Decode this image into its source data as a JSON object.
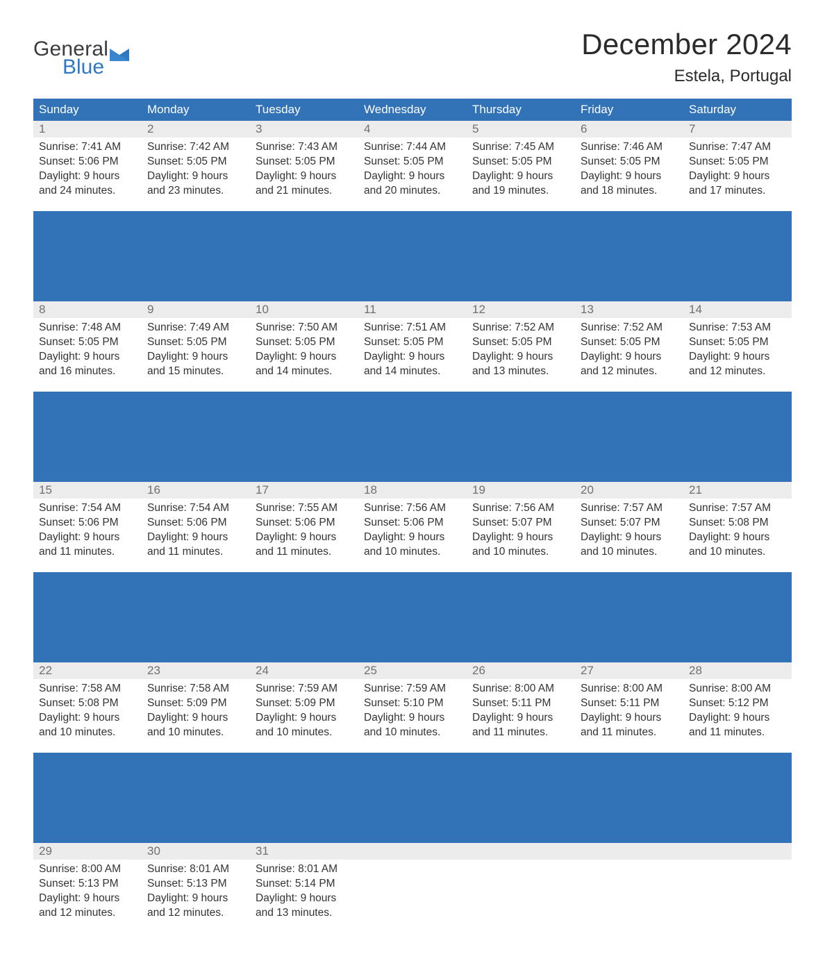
{
  "logo": {
    "line1": "General",
    "line2": "Blue",
    "flag_color": "#2f78c2"
  },
  "title": "December 2024",
  "subtitle": "Estela, Portugal",
  "colors": {
    "header_bg": "#3273b8",
    "header_text": "#ffffff",
    "daynum_bg": "#ececec",
    "daynum_text": "#6f6f6f",
    "body_text": "#333333",
    "page_bg": "#ffffff",
    "logo_gray": "#3b3b3b",
    "logo_blue": "#2f78c2"
  },
  "fonts": {
    "title_size": 42,
    "subtitle_size": 24,
    "weekday_size": 17,
    "daynum_size": 17,
    "body_size": 15.5,
    "logo_size": 30
  },
  "weekdays": [
    "Sunday",
    "Monday",
    "Tuesday",
    "Wednesday",
    "Thursday",
    "Friday",
    "Saturday"
  ],
  "weeks": [
    [
      {
        "num": "1",
        "sunrise": "Sunrise: 7:41 AM",
        "sunset": "Sunset: 5:06 PM",
        "daylight1": "Daylight: 9 hours",
        "daylight2": "and 24 minutes."
      },
      {
        "num": "2",
        "sunrise": "Sunrise: 7:42 AM",
        "sunset": "Sunset: 5:05 PM",
        "daylight1": "Daylight: 9 hours",
        "daylight2": "and 23 minutes."
      },
      {
        "num": "3",
        "sunrise": "Sunrise: 7:43 AM",
        "sunset": "Sunset: 5:05 PM",
        "daylight1": "Daylight: 9 hours",
        "daylight2": "and 21 minutes."
      },
      {
        "num": "4",
        "sunrise": "Sunrise: 7:44 AM",
        "sunset": "Sunset: 5:05 PM",
        "daylight1": "Daylight: 9 hours",
        "daylight2": "and 20 minutes."
      },
      {
        "num": "5",
        "sunrise": "Sunrise: 7:45 AM",
        "sunset": "Sunset: 5:05 PM",
        "daylight1": "Daylight: 9 hours",
        "daylight2": "and 19 minutes."
      },
      {
        "num": "6",
        "sunrise": "Sunrise: 7:46 AM",
        "sunset": "Sunset: 5:05 PM",
        "daylight1": "Daylight: 9 hours",
        "daylight2": "and 18 minutes."
      },
      {
        "num": "7",
        "sunrise": "Sunrise: 7:47 AM",
        "sunset": "Sunset: 5:05 PM",
        "daylight1": "Daylight: 9 hours",
        "daylight2": "and 17 minutes."
      }
    ],
    [
      {
        "num": "8",
        "sunrise": "Sunrise: 7:48 AM",
        "sunset": "Sunset: 5:05 PM",
        "daylight1": "Daylight: 9 hours",
        "daylight2": "and 16 minutes."
      },
      {
        "num": "9",
        "sunrise": "Sunrise: 7:49 AM",
        "sunset": "Sunset: 5:05 PM",
        "daylight1": "Daylight: 9 hours",
        "daylight2": "and 15 minutes."
      },
      {
        "num": "10",
        "sunrise": "Sunrise: 7:50 AM",
        "sunset": "Sunset: 5:05 PM",
        "daylight1": "Daylight: 9 hours",
        "daylight2": "and 14 minutes."
      },
      {
        "num": "11",
        "sunrise": "Sunrise: 7:51 AM",
        "sunset": "Sunset: 5:05 PM",
        "daylight1": "Daylight: 9 hours",
        "daylight2": "and 14 minutes."
      },
      {
        "num": "12",
        "sunrise": "Sunrise: 7:52 AM",
        "sunset": "Sunset: 5:05 PM",
        "daylight1": "Daylight: 9 hours",
        "daylight2": "and 13 minutes."
      },
      {
        "num": "13",
        "sunrise": "Sunrise: 7:52 AM",
        "sunset": "Sunset: 5:05 PM",
        "daylight1": "Daylight: 9 hours",
        "daylight2": "and 12 minutes."
      },
      {
        "num": "14",
        "sunrise": "Sunrise: 7:53 AM",
        "sunset": "Sunset: 5:05 PM",
        "daylight1": "Daylight: 9 hours",
        "daylight2": "and 12 minutes."
      }
    ],
    [
      {
        "num": "15",
        "sunrise": "Sunrise: 7:54 AM",
        "sunset": "Sunset: 5:06 PM",
        "daylight1": "Daylight: 9 hours",
        "daylight2": "and 11 minutes."
      },
      {
        "num": "16",
        "sunrise": "Sunrise: 7:54 AM",
        "sunset": "Sunset: 5:06 PM",
        "daylight1": "Daylight: 9 hours",
        "daylight2": "and 11 minutes."
      },
      {
        "num": "17",
        "sunrise": "Sunrise: 7:55 AM",
        "sunset": "Sunset: 5:06 PM",
        "daylight1": "Daylight: 9 hours",
        "daylight2": "and 11 minutes."
      },
      {
        "num": "18",
        "sunrise": "Sunrise: 7:56 AM",
        "sunset": "Sunset: 5:06 PM",
        "daylight1": "Daylight: 9 hours",
        "daylight2": "and 10 minutes."
      },
      {
        "num": "19",
        "sunrise": "Sunrise: 7:56 AM",
        "sunset": "Sunset: 5:07 PM",
        "daylight1": "Daylight: 9 hours",
        "daylight2": "and 10 minutes."
      },
      {
        "num": "20",
        "sunrise": "Sunrise: 7:57 AM",
        "sunset": "Sunset: 5:07 PM",
        "daylight1": "Daylight: 9 hours",
        "daylight2": "and 10 minutes."
      },
      {
        "num": "21",
        "sunrise": "Sunrise: 7:57 AM",
        "sunset": "Sunset: 5:08 PM",
        "daylight1": "Daylight: 9 hours",
        "daylight2": "and 10 minutes."
      }
    ],
    [
      {
        "num": "22",
        "sunrise": "Sunrise: 7:58 AM",
        "sunset": "Sunset: 5:08 PM",
        "daylight1": "Daylight: 9 hours",
        "daylight2": "and 10 minutes."
      },
      {
        "num": "23",
        "sunrise": "Sunrise: 7:58 AM",
        "sunset": "Sunset: 5:09 PM",
        "daylight1": "Daylight: 9 hours",
        "daylight2": "and 10 minutes."
      },
      {
        "num": "24",
        "sunrise": "Sunrise: 7:59 AM",
        "sunset": "Sunset: 5:09 PM",
        "daylight1": "Daylight: 9 hours",
        "daylight2": "and 10 minutes."
      },
      {
        "num": "25",
        "sunrise": "Sunrise: 7:59 AM",
        "sunset": "Sunset: 5:10 PM",
        "daylight1": "Daylight: 9 hours",
        "daylight2": "and 10 minutes."
      },
      {
        "num": "26",
        "sunrise": "Sunrise: 8:00 AM",
        "sunset": "Sunset: 5:11 PM",
        "daylight1": "Daylight: 9 hours",
        "daylight2": "and 11 minutes."
      },
      {
        "num": "27",
        "sunrise": "Sunrise: 8:00 AM",
        "sunset": "Sunset: 5:11 PM",
        "daylight1": "Daylight: 9 hours",
        "daylight2": "and 11 minutes."
      },
      {
        "num": "28",
        "sunrise": "Sunrise: 8:00 AM",
        "sunset": "Sunset: 5:12 PM",
        "daylight1": "Daylight: 9 hours",
        "daylight2": "and 11 minutes."
      }
    ],
    [
      {
        "num": "29",
        "sunrise": "Sunrise: 8:00 AM",
        "sunset": "Sunset: 5:13 PM",
        "daylight1": "Daylight: 9 hours",
        "daylight2": "and 12 minutes."
      },
      {
        "num": "30",
        "sunrise": "Sunrise: 8:01 AM",
        "sunset": "Sunset: 5:13 PM",
        "daylight1": "Daylight: 9 hours",
        "daylight2": "and 12 minutes."
      },
      {
        "num": "31",
        "sunrise": "Sunrise: 8:01 AM",
        "sunset": "Sunset: 5:14 PM",
        "daylight1": "Daylight: 9 hours",
        "daylight2": "and 13 minutes."
      },
      null,
      null,
      null,
      null
    ]
  ]
}
